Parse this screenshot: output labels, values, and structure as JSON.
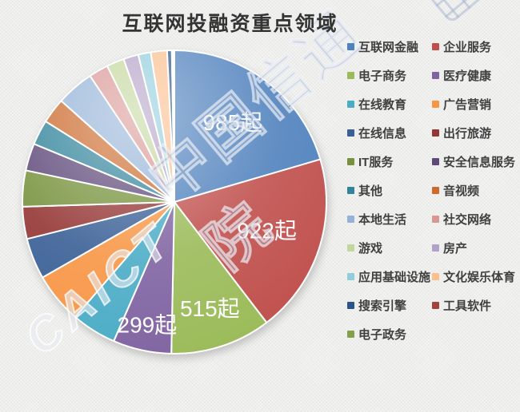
{
  "title": "互联网投融资重点领域",
  "watermark": {
    "latin": "CAICT",
    "cn": "中国信通院",
    "logo_icon": "caict-logo-grid"
  },
  "chart_data": {
    "type": "pie",
    "title": "互联网投融资重点领域",
    "unit": "起",
    "legend_position": "right",
    "rotation_start_deg": 0,
    "direction": "clockwise",
    "series": [
      {
        "name": "互联网金融",
        "value": 985,
        "label": "985起",
        "color": "#4F81BD"
      },
      {
        "name": "企业服务",
        "value": 922,
        "label": "922起",
        "color": "#C0504D"
      },
      {
        "name": "电子商务",
        "value": 515,
        "label": "515起",
        "color": "#9BBB59"
      },
      {
        "name": "医疗健康",
        "value": 299,
        "label": "299起",
        "color": "#8064A2"
      },
      {
        "name": "在线教育",
        "value": 230,
        "label": "",
        "color": "#4BACC6"
      },
      {
        "name": "广告营销",
        "value": 260,
        "label": "",
        "color": "#F79646"
      },
      {
        "name": "在线信息",
        "value": 210,
        "label": "",
        "color": "#3A6096"
      },
      {
        "name": "出行旅游",
        "value": 165,
        "label": "",
        "color": "#943634"
      },
      {
        "name": "IT服务",
        "value": 185,
        "label": "",
        "color": "#76923C"
      },
      {
        "name": "安全信息服务",
        "value": 140,
        "label": "",
        "color": "#5F497A"
      },
      {
        "name": "其他",
        "value": 128,
        "label": "",
        "color": "#31849B"
      },
      {
        "name": "音视频",
        "value": 130,
        "label": "",
        "color": "#CC6B2D"
      },
      {
        "name": "本地生活",
        "value": 193,
        "label": "",
        "color": "#95B3D7"
      },
      {
        "name": "社交网络",
        "value": 100,
        "label": "",
        "color": "#D99694"
      },
      {
        "name": "游戏",
        "value": 90,
        "label": "",
        "color": "#C3D69B"
      },
      {
        "name": "房产",
        "value": 77,
        "label": "",
        "color": "#B3A2C7"
      },
      {
        "name": "应用基础设施",
        "value": 64,
        "label": "",
        "color": "#92CDDC"
      },
      {
        "name": "文化娱乐体育",
        "value": 83,
        "label": "",
        "color": "#FABF8F"
      },
      {
        "name": "搜索引擎",
        "value": 24,
        "label": "",
        "color": "#2C5488"
      },
      {
        "name": "工具软件",
        "value": 8,
        "label": "",
        "color": "#A2423F"
      },
      {
        "name": "电子政务",
        "value": 5,
        "label": "",
        "color": "#85A04A"
      }
    ]
  }
}
